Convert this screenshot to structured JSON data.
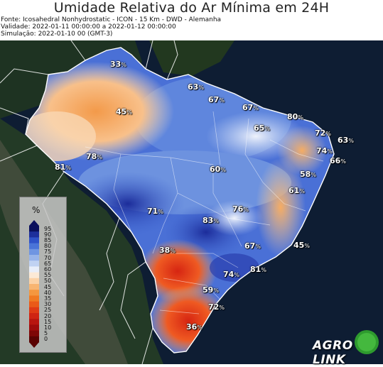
{
  "header": {
    "title": "Umidade Relativa do Ar Mínima em 24H",
    "source": "Fonte: Icosahedral Nonhydrostatic - ICON - 15 Km - DWD - Alemanha",
    "validity": "Validade: 2022-01-11 00:00:00 a 2022-01-12 00:00:00",
    "simulation": "Simulação: 2022-01-10 00 (GMT-3)"
  },
  "legend": {
    "unit": "%",
    "ticks": [
      "95",
      "90",
      "85",
      "80",
      "75",
      "70",
      "65",
      "60",
      "55",
      "50",
      "45",
      "40",
      "35",
      "30",
      "25",
      "20",
      "15",
      "10",
      "5",
      "0"
    ],
    "colors": [
      "#0a0f5c",
      "#1d2f9c",
      "#2f52c8",
      "#4a74d8",
      "#6f95e2",
      "#98b4ea",
      "#c0d2f2",
      "#e8eefa",
      "#fbe9d6",
      "#fbd2a6",
      "#f8b571",
      "#f4973f",
      "#f07a22",
      "#ea5a18",
      "#df3a14",
      "#cf2412",
      "#b8150f",
      "#9e0b0b",
      "#7e0606",
      "#5a0202"
    ]
  },
  "labels": [
    {
      "id": "label-33",
      "value": "33",
      "pct": "%"
    },
    {
      "id": "label-45-north",
      "value": "45",
      "pct": "%"
    },
    {
      "id": "label-63-north",
      "value": "63",
      "pct": "%"
    },
    {
      "id": "label-67-a",
      "value": "67",
      "pct": "%"
    },
    {
      "id": "label-67-b",
      "value": "67",
      "pct": "%"
    },
    {
      "id": "label-80",
      "value": "80",
      "pct": "%"
    },
    {
      "id": "label-65",
      "value": "65",
      "pct": "%"
    },
    {
      "id": "label-72-ne",
      "value": "72",
      "pct": "%"
    },
    {
      "id": "label-63-ne",
      "value": "63",
      "pct": "%"
    },
    {
      "id": "label-74-ne",
      "value": "74",
      "pct": "%"
    },
    {
      "id": "label-66",
      "value": "66",
      "pct": "%"
    },
    {
      "id": "label-78",
      "value": "78",
      "pct": "%"
    },
    {
      "id": "label-81-west",
      "value": "81",
      "pct": "%"
    },
    {
      "id": "label-60",
      "value": "60",
      "pct": "%"
    },
    {
      "id": "label-58",
      "value": "58",
      "pct": "%"
    },
    {
      "id": "label-61",
      "value": "61",
      "pct": "%"
    },
    {
      "id": "label-71",
      "value": "71",
      "pct": "%"
    },
    {
      "id": "label-76",
      "value": "76",
      "pct": "%"
    },
    {
      "id": "label-83",
      "value": "83",
      "pct": "%"
    },
    {
      "id": "label-67-c",
      "value": "67",
      "pct": "%"
    },
    {
      "id": "label-45-coast",
      "value": "45",
      "pct": "%"
    },
    {
      "id": "label-38",
      "value": "38",
      "pct": "%"
    },
    {
      "id": "label-74-se",
      "value": "74",
      "pct": "%"
    },
    {
      "id": "label-81-se",
      "value": "81",
      "pct": "%"
    },
    {
      "id": "label-59",
      "value": "59",
      "pct": "%"
    },
    {
      "id": "label-72-south",
      "value": "72",
      "pct": "%"
    },
    {
      "id": "label-36",
      "value": "36",
      "pct": "%"
    }
  ],
  "logo": {
    "text": "AGRO LINK"
  }
}
